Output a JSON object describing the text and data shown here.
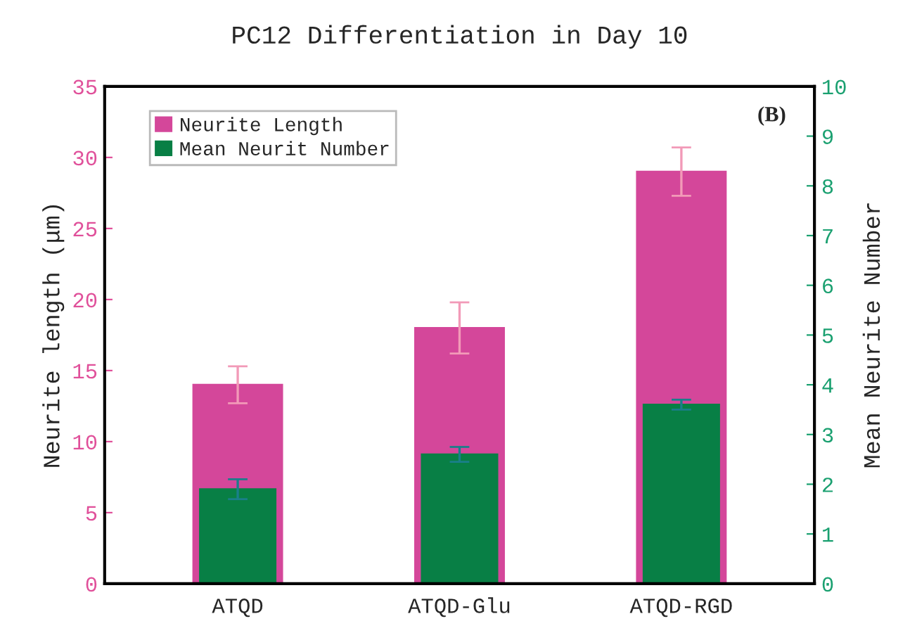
{
  "chart_data": {
    "type": "bar",
    "title": "PC12 Differentiation in Day 10",
    "ylabel": "Neurite length (μm)",
    "y2label": "Mean Neurite Number",
    "categories": [
      "ATQD",
      "ATQD-Glu",
      "ATQD-RGD"
    ],
    "series": [
      {
        "name": "Neurite Length",
        "color": "#d4479a",
        "values": [
          14.0,
          18.0,
          29.0
        ],
        "errors": [
          1.3,
          1.8,
          1.7
        ]
      },
      {
        "name": "Mean Neurit Number",
        "color": "#087f45",
        "values": [
          1.9,
          2.6,
          3.6
        ],
        "errors": [
          0.2,
          0.15,
          0.1
        ],
        "axis": "y2"
      }
    ],
    "ylim": [
      0,
      35
    ],
    "yticks": [
      0,
      5,
      10,
      15,
      20,
      25,
      30,
      35
    ],
    "y2lim": [
      0,
      10
    ],
    "y2ticks": [
      0,
      1,
      2,
      3,
      4,
      5,
      6,
      7,
      8,
      9,
      10
    ],
    "annotations": [
      "(B)"
    ],
    "legend": "top left"
  }
}
